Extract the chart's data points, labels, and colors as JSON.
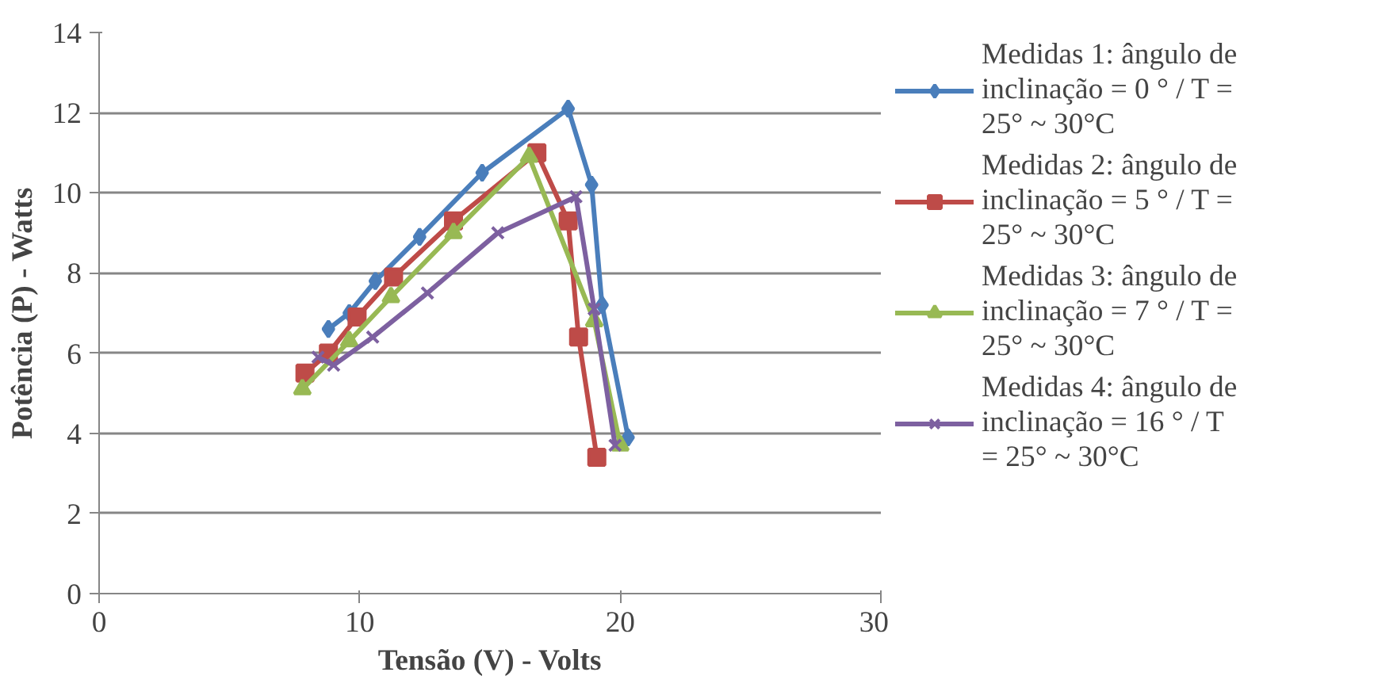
{
  "chart_data": {
    "type": "line",
    "xlabel": "Tensão (V) - Volts",
    "ylabel": "Potência (P) - Watts",
    "xlim": [
      0,
      30
    ],
    "xticks": [
      0,
      10,
      20,
      30
    ],
    "ylim": [
      0,
      14
    ],
    "yticks": [
      0,
      2,
      4,
      6,
      8,
      10,
      12,
      14
    ],
    "grid": "y",
    "legend": "right",
    "line_style": "solid",
    "series": [
      {
        "name": "Medidas 1: ângulo de inclinação = 0 ° / T = 25° ~ 30°C",
        "color": "#4a7ebb",
        "marker": "diamond",
        "x": [
          8.8,
          9.6,
          10.6,
          12.3,
          14.7,
          18.0,
          18.9,
          19.3,
          20.3
        ],
        "values": [
          6.6,
          7.0,
          7.8,
          8.9,
          10.5,
          12.1,
          10.2,
          7.2,
          3.9
        ]
      },
      {
        "name": "Medidas 2: ângulo de inclinação = 5 ° / T = 25° ~ 30°C",
        "color": "#be4b48",
        "marker": "square",
        "x": [
          7.9,
          8.8,
          9.9,
          11.3,
          13.6,
          16.8,
          18.0,
          18.4,
          19.1
        ],
        "values": [
          5.5,
          6.0,
          6.9,
          7.9,
          9.3,
          11.0,
          9.3,
          6.4,
          3.4
        ]
      },
      {
        "name": "Medidas 3: ângulo de inclinação = 7 ° / T = 25° ~ 30°C",
        "color": "#98b954",
        "marker": "triangle",
        "x": [
          7.8,
          9.6,
          11.2,
          13.6,
          16.5,
          19.0,
          20.0
        ],
        "values": [
          5.1,
          6.3,
          7.4,
          9.0,
          10.9,
          6.8,
          3.7
        ]
      },
      {
        "name": "Medidas 4: ângulo de inclinação = 16 ° / T = 25° ~ 30°C",
        "color": "#7d60a0",
        "marker": "x",
        "x": [
          8.4,
          9.0,
          10.5,
          12.6,
          15.3,
          18.3,
          19.0,
          19.8
        ],
        "values": [
          5.9,
          5.7,
          6.4,
          7.5,
          9.0,
          9.9,
          7.1,
          3.7
        ]
      }
    ]
  }
}
